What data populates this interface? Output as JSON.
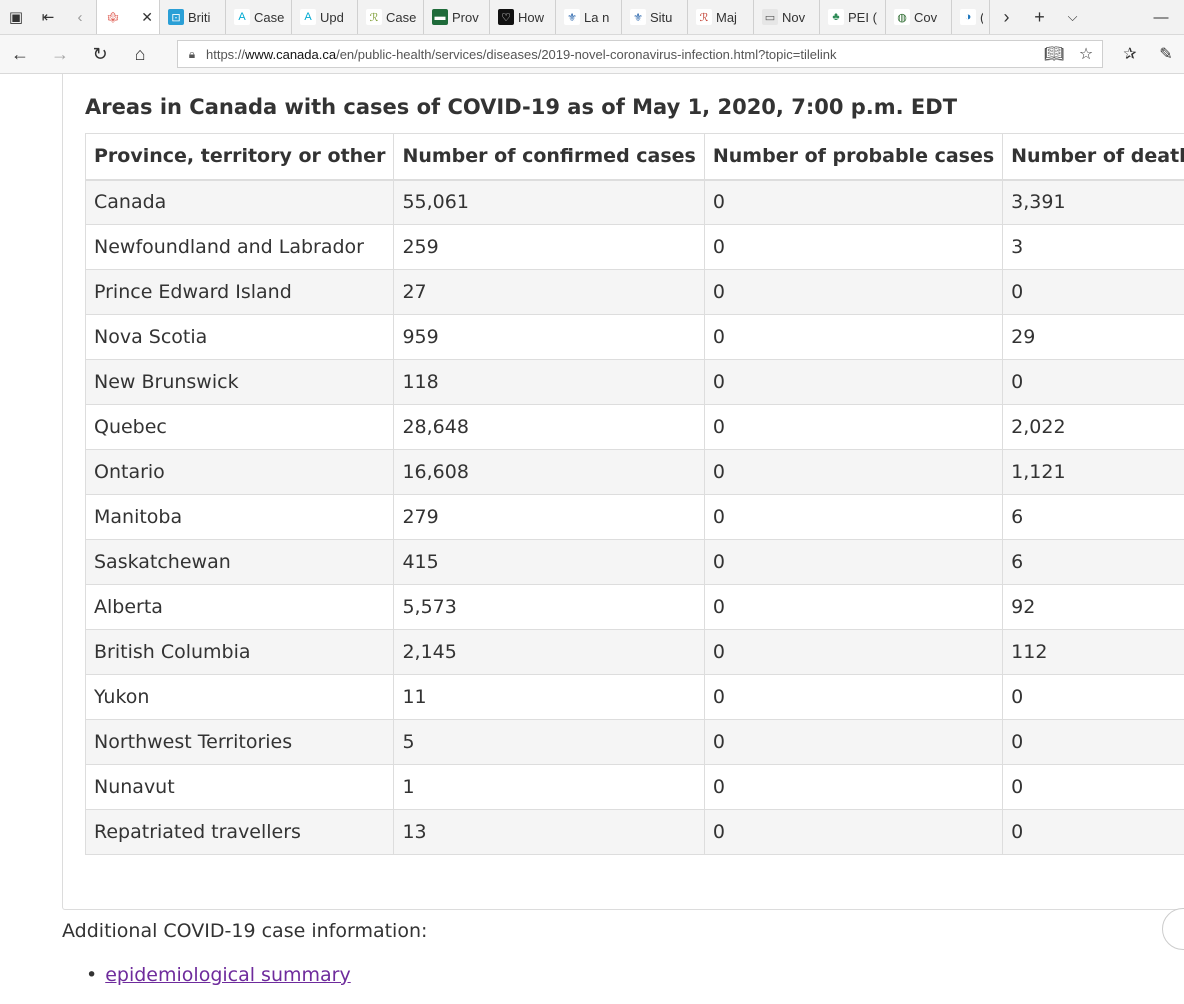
{
  "browser": {
    "tabs": [
      {
        "label": "",
        "icon": "canada-flag-icon",
        "active": true
      },
      {
        "label": "Briti",
        "icon": "bc-logo-icon"
      },
      {
        "label": "Case",
        "icon": "alberta-logo-icon"
      },
      {
        "label": "Upd",
        "icon": "alberta-logo-icon"
      },
      {
        "label": "Case",
        "icon": "saskatchewan-logo-icon"
      },
      {
        "label": "Prov",
        "icon": "manitoba-logo-icon"
      },
      {
        "label": "How",
        "icon": "ontario-logo-icon"
      },
      {
        "label": "La n",
        "icon": "quebec-logo-icon"
      },
      {
        "label": "Situ",
        "icon": "quebec-logo-icon"
      },
      {
        "label": "Maj",
        "icon": "nb-logo-icon"
      },
      {
        "label": "Nov",
        "icon": "ns-logo-icon"
      },
      {
        "label": "PEI (",
        "icon": "pei-logo-icon"
      },
      {
        "label": "Cov",
        "icon": "nl-logo-icon"
      },
      {
        "label": "(",
        "icon": "yukon-logo-icon"
      }
    ],
    "url_prefix": "https://",
    "url_domain": "www.canada.ca",
    "url_path": "/en/public-health/services/diseases/2019-novel-coronavirus-infection.html?topic=tilelink"
  },
  "page": {
    "table_caption": "Areas in Canada with cases of COVID-19 as of May 1, 2020, 7:00 p.m. EDT",
    "table": {
      "headers": [
        "Province, territory or other",
        "Number of confirmed cases",
        "Number of probable cases",
        "Number of deaths"
      ],
      "rows": [
        [
          "Canada",
          "55,061",
          "0",
          "3,391"
        ],
        [
          "Newfoundland and Labrador",
          "259",
          "0",
          "3"
        ],
        [
          "Prince Edward Island",
          "27",
          "0",
          "0"
        ],
        [
          "Nova Scotia",
          "959",
          "0",
          "29"
        ],
        [
          "New Brunswick",
          "118",
          "0",
          "0"
        ],
        [
          "Quebec",
          "28,648",
          "0",
          "2,022"
        ],
        [
          "Ontario",
          "16,608",
          "0",
          "1,121"
        ],
        [
          "Manitoba",
          "279",
          "0",
          "6"
        ],
        [
          "Saskatchewan",
          "415",
          "0",
          "6"
        ],
        [
          "Alberta",
          "5,573",
          "0",
          "92"
        ],
        [
          "British Columbia",
          "2,145",
          "0",
          "112"
        ],
        [
          "Yukon",
          "11",
          "0",
          "0"
        ],
        [
          "Northwest Territories",
          "5",
          "0",
          "0"
        ],
        [
          "Nunavut",
          "1",
          "0",
          "0"
        ],
        [
          "Repatriated travellers",
          "13",
          "0",
          "0"
        ]
      ]
    },
    "additional_label": "Additional COVID-19 case information:",
    "links": [
      "epidemiological summary"
    ]
  },
  "colors": {
    "link": "#6e2b9c",
    "row_stripe": "#f5f5f5",
    "text": "#333333"
  }
}
